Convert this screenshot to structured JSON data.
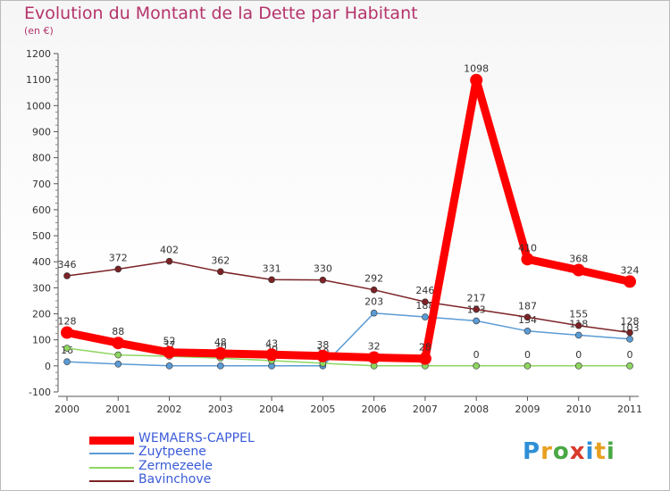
{
  "title": "Evolution du Montant de la Dette par Habitant",
  "subtitle": "(en €)",
  "logo": "Proxiti",
  "chart_data": {
    "type": "line",
    "x": [
      "2000",
      "2001",
      "2002",
      "2003",
      "2004",
      "2005",
      "2006",
      "2007",
      "2008",
      "2009",
      "2010",
      "2011"
    ],
    "ylim": [
      -100,
      1200
    ],
    "yticks": [
      -100,
      0,
      100,
      200,
      300,
      400,
      500,
      600,
      700,
      800,
      900,
      1000,
      1100,
      1200
    ],
    "grid": false,
    "legend_position": "bottom-left",
    "series": [
      {
        "name": "WEMAERS-CAPPEL",
        "color": "#ff0000",
        "values": [
          128,
          88,
          52,
          48,
          43,
          38,
          32,
          28,
          1098,
          410,
          368,
          324
        ],
        "labels": [
          "128",
          "88",
          "52",
          "48",
          "43",
          "38",
          "32",
          "28",
          "1098",
          "410",
          "368",
          "324"
        ]
      },
      {
        "name": "Zuytpeene",
        "color": "#5b9bd5",
        "values": [
          16,
          7,
          0,
          0,
          0,
          0,
          203,
          188,
          173,
          134,
          118,
          103
        ],
        "labels": [
          "16",
          "",
          "",
          "",
          "",
          "",
          "203",
          "188",
          "173",
          "134",
          "118",
          "103"
        ]
      },
      {
        "name": "Zermezeele",
        "color": "#8fd660",
        "values": [
          68,
          42,
          37,
          30,
          20,
          10,
          0,
          0,
          0,
          0,
          0,
          0
        ],
        "labels": [
          "",
          "",
          "37",
          "30",
          "20",
          "10",
          "",
          "",
          "0",
          "0",
          "0",
          "0"
        ]
      },
      {
        "name": "Bavinchove",
        "color": "#7b2226",
        "values": [
          346,
          372,
          402,
          362,
          331,
          330,
          292,
          246,
          217,
          187,
          155,
          128
        ],
        "labels": [
          "346",
          "372",
          "402",
          "362",
          "331",
          "330",
          "292",
          "246",
          "217",
          "187",
          "155",
          "128"
        ]
      }
    ]
  }
}
